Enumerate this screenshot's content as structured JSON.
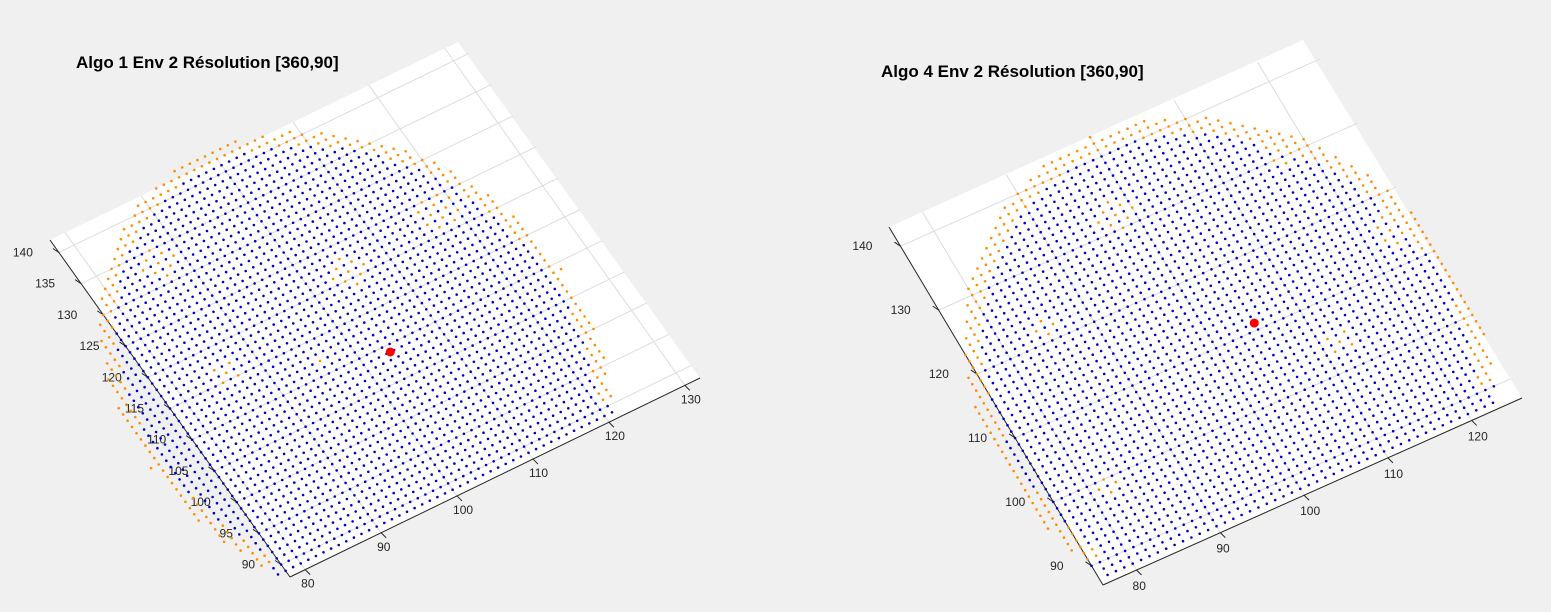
{
  "window": {
    "background": "#f0f0f0"
  },
  "chart_data": [
    {
      "type": "scatter",
      "title": "Algo 1 Env 2 Résolution [360,90]",
      "xlabel": "",
      "ylabel": "",
      "x_ticks": [
        "80",
        "90",
        "100",
        "110",
        "120",
        "130"
      ],
      "y_ticks": [
        "90",
        "95",
        "100",
        "105",
        "110",
        "115",
        "120",
        "125",
        "130",
        "135",
        "140"
      ],
      "xlim": [
        78,
        132
      ],
      "ylim": [
        88,
        142
      ],
      "grid": true,
      "point_spacing": 1,
      "dome": {
        "cx": 99,
        "cy": 109,
        "rx": 27,
        "ry": 34.5,
        "y_min": 88.5
      },
      "special_point": {
        "x": 103.5,
        "y": 109,
        "color": "#ff0000"
      },
      "boundary_width": 1.6,
      "interior_orange_patches": [
        {
          "x": 105,
          "y": 121,
          "r": 2.4
        },
        {
          "x": 118,
          "y": 123,
          "r": 2.3
        },
        {
          "x": 87,
          "y": 133,
          "r": 2.2
        },
        {
          "x": 86,
          "y": 116,
          "r": 1.5
        },
        {
          "x": 96,
          "y": 112,
          "r": 1.2
        }
      ],
      "colors": {
        "main": "#0000cd",
        "boundary": "#ff8c00"
      }
    },
    {
      "type": "scatter",
      "title": "Algo 4 Env 2 Résolution [360,90]",
      "xlabel": "",
      "ylabel": "",
      "x_ticks": [
        "80",
        "90",
        "100",
        "110",
        "120"
      ],
      "y_ticks": [
        "90",
        "100",
        "110",
        "120",
        "130",
        "140"
      ],
      "xlim": [
        76,
        126
      ],
      "ylim": [
        87,
        143
      ],
      "grid": true,
      "point_spacing": 1,
      "dome": {
        "cx": 100,
        "cy": 106.5,
        "rx": 27,
        "ry": 36.5,
        "y_min": 88
      },
      "special_point": {
        "x": 105,
        "y": 111,
        "color": "#ff0000"
      },
      "boundary_width": 1.8,
      "interior_orange_patches": [
        {
          "x": 118,
          "y": 131,
          "r": 2.5
        },
        {
          "x": 124,
          "y": 115,
          "r": 2.6
        },
        {
          "x": 98,
          "y": 132,
          "r": 2.2
        },
        {
          "x": 85,
          "y": 122,
          "r": 1.8
        },
        {
          "x": 82,
          "y": 99,
          "r": 1.6
        },
        {
          "x": 112,
          "y": 104,
          "r": 1.8
        }
      ],
      "colors": {
        "main": "#0000cd",
        "boundary": "#ff8c00"
      }
    }
  ]
}
